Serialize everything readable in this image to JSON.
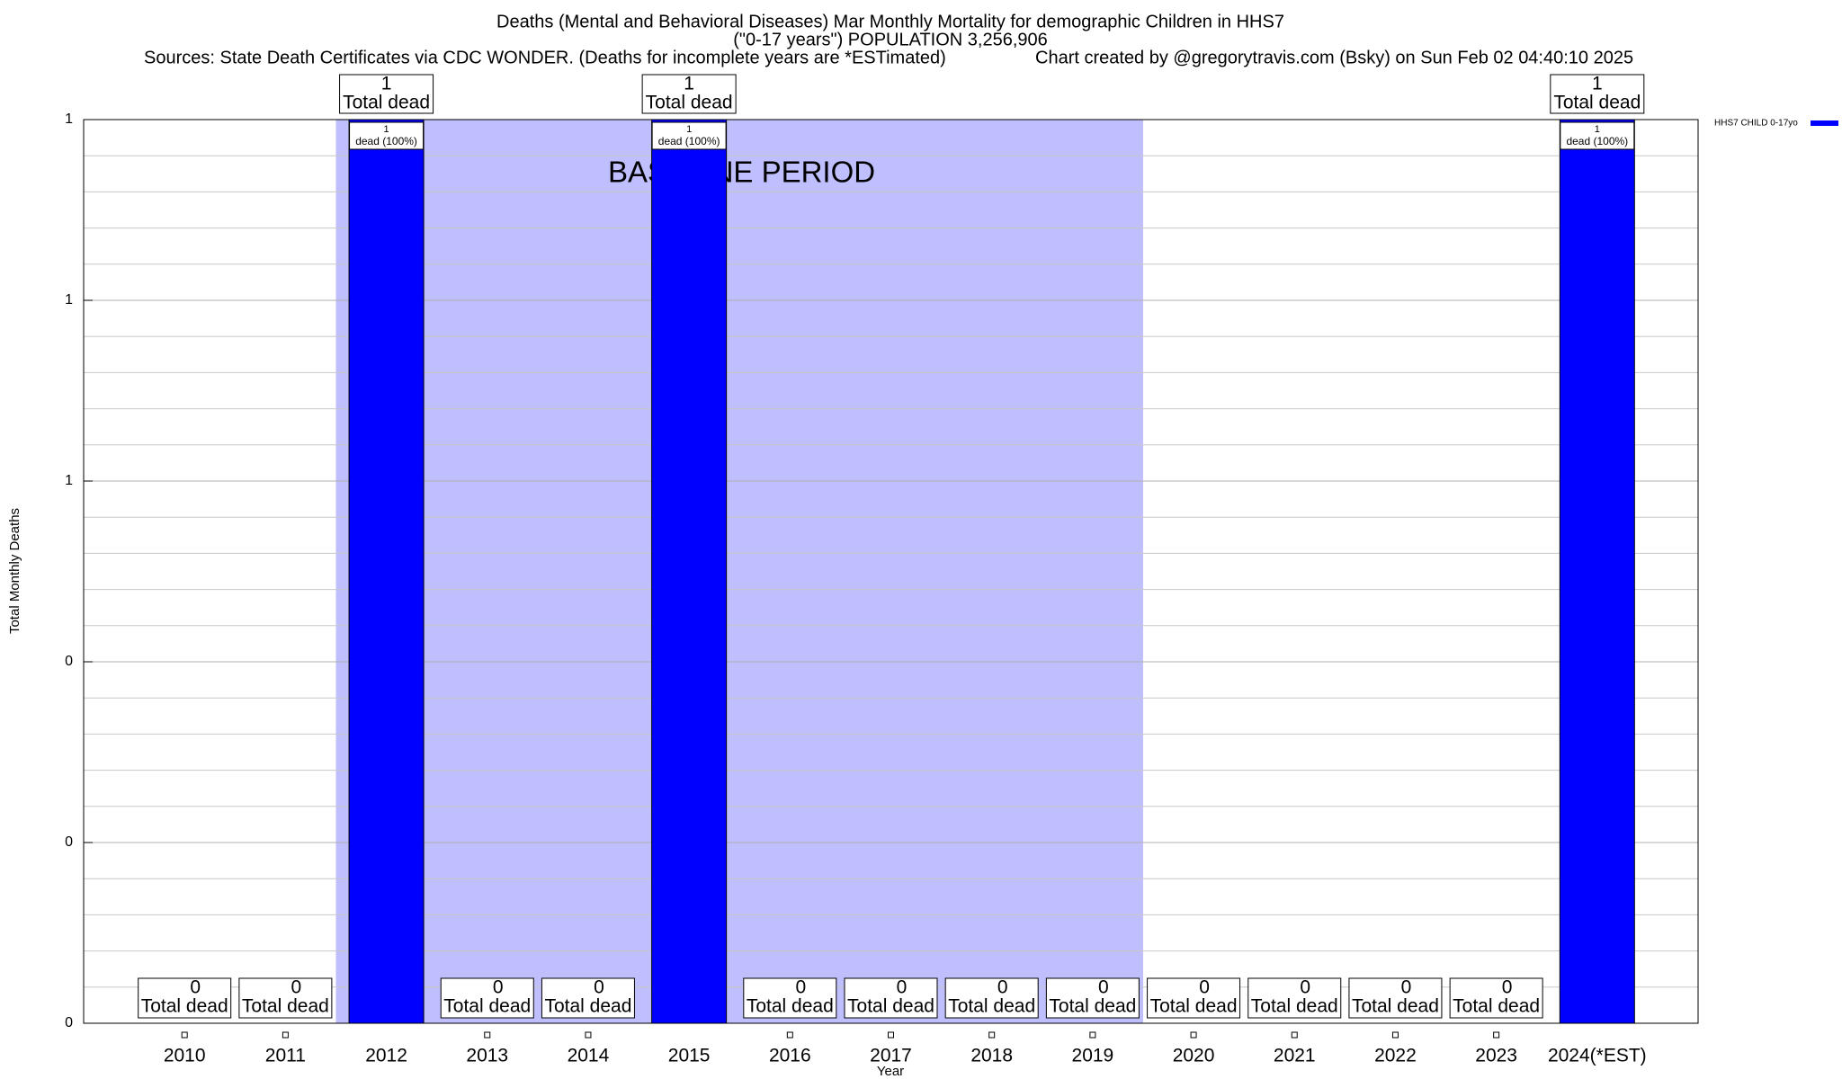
{
  "chart_data": {
    "type": "bar",
    "title": "Deaths (Mental and Behavioral Diseases) Mar Monthly Mortality for demographic Children in HHS7",
    "subtitle": "(\"0-17 years\") POPULATION 3,256,906",
    "sources": "Sources: State Death Certificates via CDC WONDER. (Deaths for incomplete years are *ESTimated)",
    "credit": "Chart created by @gregorytravis.com (Bsky) on Sun Feb 02 04:40:10 2025",
    "x_label": "Year",
    "y_label": "Total Monthly Deaths",
    "categories": [
      "2010",
      "2011",
      "2012",
      "2013",
      "2014",
      "2015",
      "2016",
      "2017",
      "2018",
      "2019",
      "2020",
      "2021",
      "2022",
      "2023",
      "2024(*EST)"
    ],
    "series": [
      {
        "name": "HHS7 CHILD 0-17yo",
        "color": "#0000ff",
        "values": [
          0,
          0,
          1,
          0,
          0,
          1,
          0,
          0,
          0,
          0,
          0,
          0,
          0,
          0,
          1
        ]
      }
    ],
    "total_label": "Total dead",
    "inner_labels": [
      null,
      null,
      "dead (100%)",
      null,
      null,
      "dead (100%)",
      null,
      null,
      null,
      null,
      null,
      null,
      null,
      null,
      "dead (100%)"
    ],
    "baseline_period": {
      "label": "BASELINE PERIOD",
      "start": "2012",
      "end": "2019",
      "color": "#bfbffd"
    },
    "ylim": [
      0,
      1
    ],
    "yticks": [
      {
        "value": 0,
        "label": "0"
      },
      {
        "value": 0.2,
        "label": "0"
      },
      {
        "value": 0.4,
        "label": "0"
      },
      {
        "value": 0.6,
        "label": "1"
      },
      {
        "value": 0.8,
        "label": "1"
      },
      {
        "value": 1,
        "label": "1"
      }
    ],
    "minor_yticks": [
      0.04,
      0.08,
      0.12,
      0.16,
      0.24,
      0.28,
      0.32,
      0.36,
      0.44,
      0.48,
      0.52,
      0.56,
      0.64,
      0.68,
      0.72,
      0.76,
      0.84,
      0.88,
      0.92,
      0.96
    ],
    "grid": true,
    "legend": "right"
  }
}
